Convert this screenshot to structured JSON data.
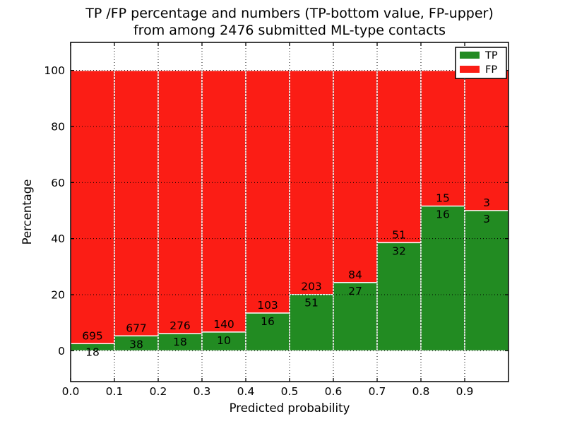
{
  "chart_data": {
    "type": "bar",
    "stacked": true,
    "title": "TP /FP percentage and numbers (TP-bottom value, FP-upper)\nfrom among 2476 submitted ML-type contacts",
    "title_lines": [
      "TP /FP percentage and numbers (TP-bottom value, FP-upper)",
      "from among 2476 submitted ML-type contacts"
    ],
    "xlabel": "Predicted probability",
    "ylabel": "Percentage",
    "total_contacts": 2476,
    "bin_starts": [
      0.0,
      0.1,
      0.2,
      0.3,
      0.4,
      0.5,
      0.6,
      0.7,
      0.8,
      0.9
    ],
    "bin_width": 0.1,
    "series": [
      {
        "name": "TP",
        "color": "#228b22",
        "counts": [
          18,
          38,
          18,
          10,
          16,
          51,
          27,
          32,
          16,
          3
        ]
      },
      {
        "name": "FP",
        "color": "#fb1d15",
        "counts": [
          695,
          677,
          276,
          140,
          103,
          203,
          84,
          51,
          15,
          3
        ]
      }
    ],
    "tp_percent": [
      2.52,
      5.31,
      6.12,
      6.67,
      13.45,
      20.08,
      24.32,
      38.55,
      51.61,
      50.0
    ],
    "fp_percent_note": "fp_percent = 100 - tp_percent; bars are stacked to 100%",
    "xticks": [
      "0.0",
      "0.1",
      "0.2",
      "0.3",
      "0.4",
      "0.5",
      "0.6",
      "0.7",
      "0.8",
      "0.9"
    ],
    "yticks": [
      0,
      20,
      40,
      60,
      80,
      100
    ],
    "xlim": [
      0,
      1
    ],
    "ylim": [
      -11,
      110
    ],
    "grid": true,
    "grid_style": "dotted",
    "bar_edge_color": "#ffffff",
    "legend": {
      "position": "upper right",
      "entries": [
        {
          "label": "TP",
          "color": "#228b22"
        },
        {
          "label": "FP",
          "color": "#fb1d15"
        }
      ]
    }
  }
}
